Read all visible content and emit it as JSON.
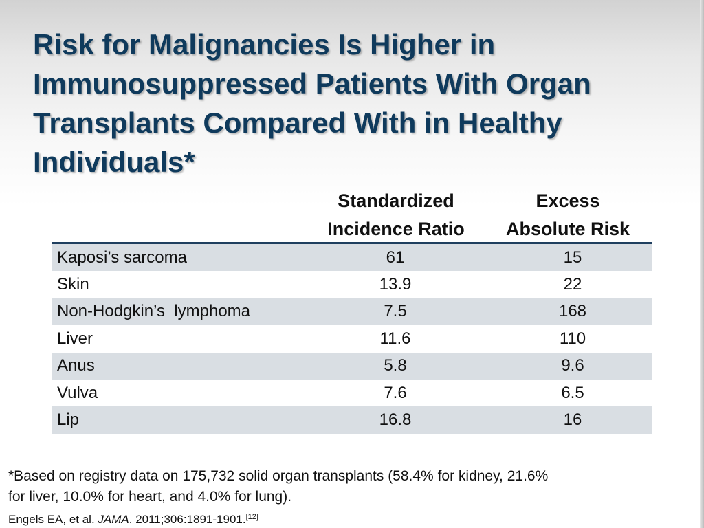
{
  "slide": {
    "title_lines": [
      "Risk for Malignancies Is Higher in",
      "Immunosuppressed Patients With Organ",
      "Transplants Compared With in Healthy",
      "Individuals*"
    ]
  },
  "table": {
    "headers": {
      "sir": [
        "Standardized",
        "Incidence Ratio"
      ],
      "ear": [
        "Excess",
        "Absolute Risk"
      ]
    },
    "rows": [
      {
        "name": "Kaposi’s sarcoma",
        "sir": "61",
        "ear": "15"
      },
      {
        "name": "Skin",
        "sir": "13.9",
        "ear": "22"
      },
      {
        "name": "Non-Hodgkin’s  lymphoma",
        "sir": "7.5",
        "ear": "168"
      },
      {
        "name": "Liver",
        "sir": "11.6",
        "ear": "110"
      },
      {
        "name": "Anus",
        "sir": "5.8",
        "ear": "9.6"
      },
      {
        "name": "Vulva",
        "sir": "7.6",
        "ear": "6.5"
      },
      {
        "name": "Lip",
        "sir": "16.8",
        "ear": "16"
      }
    ]
  },
  "footnote": {
    "lines": [
      "*Based on registry data on 175,732 solid organ transplants (58.4% for kidney, 21.6%",
      "for liver, 10.0% for heart, and 4.0% for lung)."
    ]
  },
  "citation": {
    "authors": "Engels EA, et al. ",
    "journal": "JAMA",
    "details": ". 2011;306:1891-1901.",
    "ref": "[12]"
  },
  "colors": {
    "title": "#0f3a5c",
    "row_shade": "#d9dee3",
    "rule": "#1f3f5f"
  }
}
